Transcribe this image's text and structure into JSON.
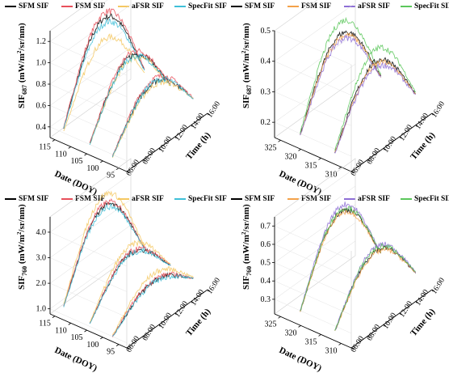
{
  "legend_labels": [
    "SFM SIF",
    "FSM SIF",
    "aFSR SIF",
    "SpecFit SIF"
  ],
  "series_colors": {
    "SFM SIF": "#000000",
    "FSM SIF": "#e8505b",
    "aFSR SIF": "#f5c862",
    "SpecFit SIF": "#3fc0d8",
    "FSM SIF (right)": "#f4a24a",
    "aFSR SIF (right)": "#8e6fd6",
    "SpecFit SIF (right)": "#5bc75b"
  },
  "chart_data": [
    {
      "type": "line",
      "panel": "top-left",
      "series_names": [
        "SFM SIF",
        "FSM SIF",
        "aFSR SIF",
        "SpecFit SIF"
      ],
      "ylabel": "SIF687 (mW/m2/sr/nm)",
      "xlabel": "Time (h)",
      "zlabel": "Date (DOY)",
      "y_ticks": [
        "0.4",
        "0.6",
        "0.8",
        "1.0",
        "1.2"
      ],
      "ylim": [
        0.3,
        1.3
      ],
      "x_ticks": [
        "06:00",
        "08:00",
        "10:00",
        "12:00",
        "14:00",
        "16:00"
      ],
      "z_ticks": [
        "115",
        "110",
        "105",
        "100",
        "95"
      ],
      "days": [
        112,
        104,
        97
      ],
      "peaks": [
        {
          "SFM SIF": 1.2,
          "FSM SIF": 1.25,
          "aFSR SIF": 1.0,
          "SpecFit SIF": 1.15
        },
        {
          "SFM SIF": 0.95,
          "FSM SIF": 0.98,
          "aFSR SIF": 0.92,
          "SpecFit SIF": 0.93
        },
        {
          "SFM SIF": 0.8,
          "FSM SIF": 0.83,
          "aFSR SIF": 0.77,
          "SpecFit SIF": 0.8
        }
      ]
    },
    {
      "type": "line",
      "panel": "top-right",
      "series_names": [
        "SFM SIF",
        "FSM SIF",
        "aFSR SIF",
        "SpecFit SIF"
      ],
      "ylabel": "SIF687 (mW/m2/sr/nm)",
      "xlabel": "Time (h)",
      "zlabel": "Date (DOY)",
      "y_ticks": [
        "0.2",
        "0.3",
        "0.4",
        "0.5"
      ],
      "ylim": [
        0.15,
        0.5
      ],
      "x_ticks": [
        "06:00",
        "08:00",
        "10:00",
        "12:00",
        "14:00",
        "16:00"
      ],
      "z_ticks": [
        "325",
        "320",
        "315",
        "310"
      ],
      "days": [
        320,
        312
      ],
      "peaks": [
        {
          "SFM SIF": 0.43,
          "FSM SIF": 0.42,
          "aFSR SIF": 0.41,
          "SpecFit SIF": 0.47
        },
        {
          "SFM SIF": 0.39,
          "FSM SIF": 0.38,
          "aFSR SIF": 0.37,
          "SpecFit SIF": 0.43
        }
      ]
    },
    {
      "type": "line",
      "panel": "bottom-left",
      "series_names": [
        "SFM SIF",
        "FSM SIF",
        "aFSR SIF",
        "SpecFit SIF"
      ],
      "ylabel": "SIF760 (mW/m2/sr/nm)",
      "xlabel": "Time (h)",
      "zlabel": "Date (DOY)",
      "y_ticks": [
        "1.0",
        "2.0",
        "3.0",
        "4.0"
      ],
      "ylim": [
        0.8,
        4.6
      ],
      "x_ticks": [
        "06:00",
        "08:00",
        "10:00",
        "12:00",
        "14:00",
        "16:00"
      ],
      "z_ticks": [
        "115",
        "110",
        "105",
        "100",
        "95"
      ],
      "days": [
        112,
        104,
        97
      ],
      "peaks": [
        {
          "SFM SIF": 4.1,
          "FSM SIF": 4.2,
          "aFSR SIF": 4.55,
          "SpecFit SIF": 4.0
        },
        {
          "SFM SIF": 2.7,
          "FSM SIF": 2.75,
          "aFSR SIF": 3.0,
          "SpecFit SIF": 2.65
        },
        {
          "SFM SIF": 2.0,
          "FSM SIF": 2.05,
          "aFSR SIF": 2.3,
          "SpecFit SIF": 1.95
        }
      ]
    },
    {
      "type": "line",
      "panel": "bottom-right",
      "series_names": [
        "SFM SIF",
        "FSM SIF",
        "aFSR SIF",
        "SpecFit SIF"
      ],
      "ylabel": "SIF760 (mW/m2/sr/nm)",
      "xlabel": "Time (h)",
      "zlabel": "Date (DOY)",
      "y_ticks": [
        "0.3",
        "0.4",
        "0.5",
        "0.6",
        "0.7"
      ],
      "ylim": [
        0.22,
        0.75
      ],
      "x_ticks": [
        "06:00",
        "08:00",
        "10:00",
        "12:00",
        "14:00",
        "16:00"
      ],
      "z_ticks": [
        "325",
        "320",
        "315",
        "310"
      ],
      "days": [
        320,
        312
      ],
      "peaks": [
        {
          "SFM SIF": 0.68,
          "FSM SIF": 0.67,
          "aFSR SIF": 0.71,
          "SpecFit SIF": 0.69
        },
        {
          "SFM SIF": 0.55,
          "FSM SIF": 0.54,
          "aFSR SIF": 0.57,
          "SpecFit SIF": 0.56
        }
      ]
    }
  ]
}
